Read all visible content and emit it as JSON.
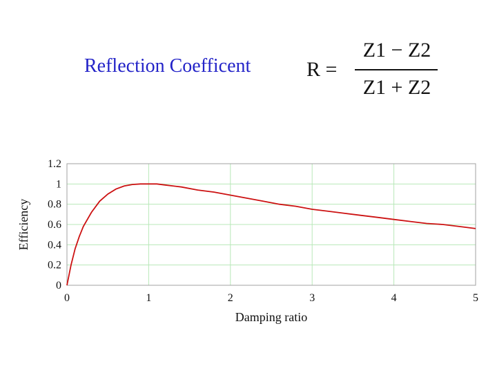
{
  "header": {
    "title": "Reflection Coefficent",
    "formula": {
      "lhs": "R =",
      "numerator": "Z1 − Z2",
      "denominator": "Z1 + Z2"
    }
  },
  "chart_data": {
    "type": "line",
    "xlabel": "Damping ratio",
    "ylabel": "Efficiency",
    "xlim": [
      0,
      5
    ],
    "ylim": [
      0,
      1.2
    ],
    "xticks": [
      "0",
      "1",
      "2",
      "3",
      "4",
      "5"
    ],
    "yticks": [
      "0",
      "0.2",
      "0.4",
      "0.6",
      "0.8",
      "1",
      "1.2"
    ],
    "grid": true,
    "series": [
      {
        "color": "#cc1111",
        "x": [
          0,
          0.05,
          0.1,
          0.15,
          0.2,
          0.3,
          0.4,
          0.5,
          0.6,
          0.7,
          0.8,
          0.9,
          1.0,
          1.1,
          1.2,
          1.4,
          1.6,
          1.8,
          2.0,
          2.2,
          2.4,
          2.6,
          2.8,
          3.0,
          3.2,
          3.4,
          3.6,
          3.8,
          4.0,
          4.2,
          4.4,
          4.6,
          4.8,
          5.0
        ],
        "y": [
          0,
          0.2,
          0.36,
          0.48,
          0.58,
          0.72,
          0.83,
          0.9,
          0.95,
          0.98,
          0.995,
          1.0,
          1.0,
          1.0,
          0.99,
          0.97,
          0.94,
          0.92,
          0.89,
          0.86,
          0.83,
          0.8,
          0.78,
          0.75,
          0.73,
          0.71,
          0.69,
          0.67,
          0.65,
          0.63,
          0.61,
          0.6,
          0.58,
          0.56
        ]
      }
    ]
  },
  "colors": {
    "title": "#2323c8",
    "grid": "#b8e8b8",
    "frame": "#a0a0a0",
    "curve": "#cc1111"
  }
}
